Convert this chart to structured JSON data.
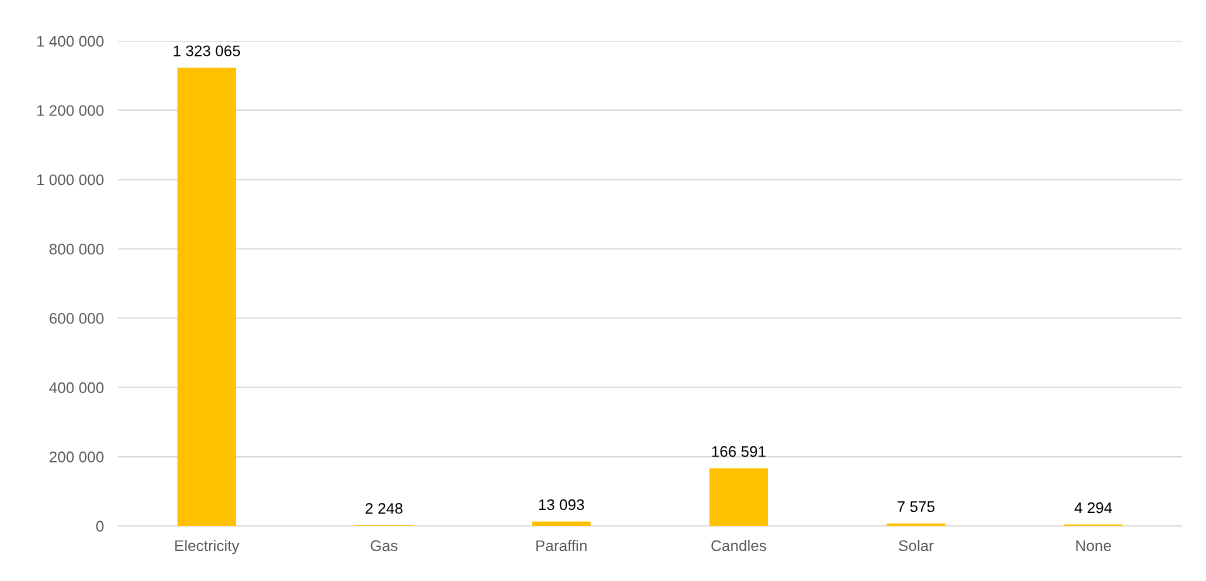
{
  "chart_data": {
    "type": "bar",
    "categories": [
      "Electricity",
      "Gas",
      "Paraffin",
      "Candles",
      "Solar",
      "None"
    ],
    "values": [
      1323065,
      2248,
      13093,
      166591,
      7575,
      4294
    ],
    "value_labels": [
      "1 323 065",
      "2 248",
      "13 093",
      "166 591",
      "7 575",
      "4 294"
    ],
    "color": "#ffc000",
    "ylim": [
      0,
      1400000
    ],
    "yticks": [
      {
        "value": 0,
        "label": "0"
      },
      {
        "value": 200000,
        "label": "200 000"
      },
      {
        "value": 400000,
        "label": "400 000"
      },
      {
        "value": 600000,
        "label": "600 000"
      },
      {
        "value": 800000,
        "label": "800 000"
      },
      {
        "value": 1000000,
        "label": "1 000 000"
      },
      {
        "value": 1200000,
        "label": "1 200 000"
      },
      {
        "value": 1400000,
        "label": "1 400 000"
      }
    ],
    "grid": "y",
    "legend": false
  }
}
